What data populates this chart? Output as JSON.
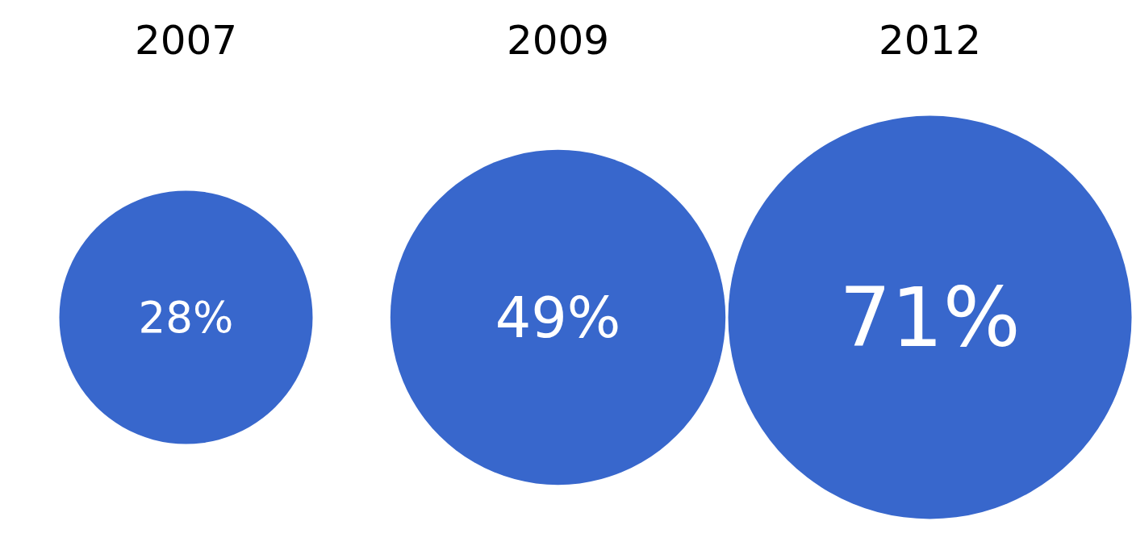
{
  "chart_data": {
    "type": "other",
    "categories": [
      "2007",
      "2009",
      "2012"
    ],
    "values": [
      28,
      49,
      71
    ],
    "value_labels": [
      "28%",
      "49%",
      "71%"
    ],
    "color": "#3867cc"
  }
}
